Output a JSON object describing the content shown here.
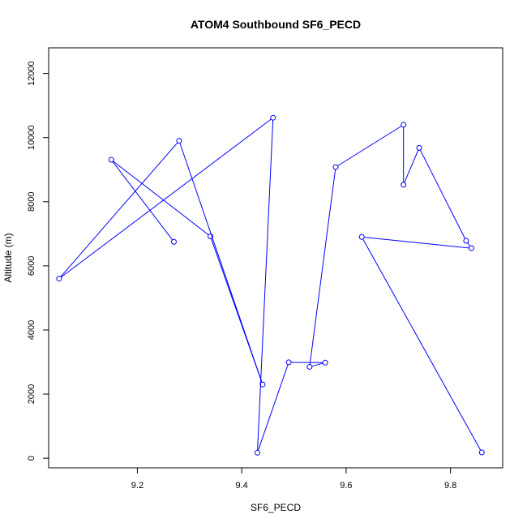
{
  "chart_data": {
    "type": "line",
    "title": "ATOM4 Southbound SF6_PECD",
    "xlabel": "SF6_PECD",
    "ylabel": "Altitude (m)",
    "xlim": [
      9.03,
      9.9
    ],
    "ylim": [
      -300,
      12800
    ],
    "x_ticks": [
      9.2,
      9.4,
      9.6,
      9.8
    ],
    "x_tick_labels": [
      "9.2",
      "9.4",
      "9.6",
      "9.8"
    ],
    "y_ticks": [
      0,
      2000,
      4000,
      6000,
      8000,
      10000,
      12000
    ],
    "y_tick_labels": [
      "0",
      "2000",
      "4000",
      "6000",
      "8000",
      "10000",
      "12000"
    ],
    "grid": false,
    "series": [
      {
        "color": "#0000ff",
        "marker": "open-circle",
        "points": [
          {
            "x": 9.86,
            "y": 180
          },
          {
            "x": 9.63,
            "y": 6900
          },
          {
            "x": 9.84,
            "y": 6550
          },
          {
            "x": 9.83,
            "y": 6780
          },
          {
            "x": 9.74,
            "y": 9680
          },
          {
            "x": 9.71,
            "y": 8530
          },
          {
            "x": 9.71,
            "y": 10400
          },
          {
            "x": 9.58,
            "y": 9080
          },
          {
            "x": 9.53,
            "y": 2850
          },
          {
            "x": 9.56,
            "y": 2980
          },
          {
            "x": 9.49,
            "y": 2990
          },
          {
            "x": 9.43,
            "y": 170
          },
          {
            "x": 9.46,
            "y": 10620
          },
          {
            "x": 9.05,
            "y": 5600
          },
          {
            "x": 9.28,
            "y": 9900
          },
          {
            "x": 9.44,
            "y": 2300
          },
          {
            "x": 9.34,
            "y": 6920
          },
          {
            "x": 9.15,
            "y": 9310
          },
          {
            "x": 9.27,
            "y": 6750
          }
        ]
      }
    ]
  }
}
